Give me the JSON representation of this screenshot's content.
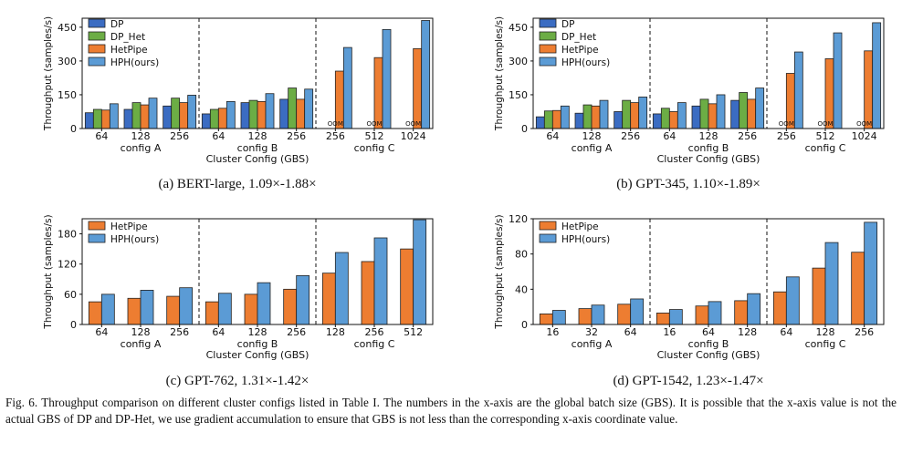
{
  "colors": {
    "DP": "#3b6cc2",
    "DP_Het": "#6cad45",
    "HetPipe": "#ed7d31",
    "HPH(ours)": "#5b9bd5"
  },
  "chart_data": [
    {
      "type": "bar",
      "ylabel": "Throughput (samples/s)",
      "xlabel": "Cluster Config (GBS)",
      "ylim": [
        0,
        490
      ],
      "yticks": [
        0,
        150,
        300,
        450
      ],
      "legend_placement": "top-left",
      "grid": false,
      "caption": "(a) BERT-large, 1.09×-1.88×",
      "groups": [
        {
          "label": "config A",
          "categories": [
            "64",
            "128",
            "256"
          ]
        },
        {
          "label": "config B",
          "categories": [
            "64",
            "128",
            "256"
          ]
        },
        {
          "label": "config C",
          "categories": [
            "256",
            "512",
            "1024"
          ]
        }
      ],
      "series": [
        {
          "name": "DP",
          "values": [
            70,
            85,
            100,
            65,
            115,
            130,
            null,
            null,
            null
          ]
        },
        {
          "name": "DP_Het",
          "values": [
            85,
            115,
            135,
            85,
            125,
            180,
            null,
            null,
            null
          ]
        },
        {
          "name": "HetPipe",
          "values": [
            82,
            105,
            115,
            90,
            120,
            130,
            255,
            315,
            355
          ]
        },
        {
          "name": "HPH(ours)",
          "values": [
            110,
            135,
            148,
            120,
            155,
            175,
            360,
            440,
            480
          ]
        }
      ],
      "annotations": [
        {
          "category_index": 6,
          "text": "OOM"
        },
        {
          "category_index": 7,
          "text": "OOM"
        },
        {
          "category_index": 8,
          "text": "OOM"
        }
      ]
    },
    {
      "type": "bar",
      "ylabel": "Throughput (samples/s)",
      "xlabel": "Cluster Config (GBS)",
      "ylim": [
        0,
        490
      ],
      "yticks": [
        0,
        150,
        300,
        450
      ],
      "legend_placement": "top-left",
      "grid": false,
      "caption": "(b) GPT-345, 1.10×-1.89×",
      "groups": [
        {
          "label": "config A",
          "categories": [
            "64",
            "128",
            "256"
          ]
        },
        {
          "label": "config B",
          "categories": [
            "64",
            "128",
            "256"
          ]
        },
        {
          "label": "config C",
          "categories": [
            "256",
            "512",
            "1024"
          ]
        }
      ],
      "series": [
        {
          "name": "DP",
          "values": [
            52,
            68,
            75,
            65,
            100,
            125,
            null,
            null,
            null
          ]
        },
        {
          "name": "DP_Het",
          "values": [
            78,
            105,
            125,
            90,
            130,
            160,
            null,
            null,
            null
          ]
        },
        {
          "name": "HetPipe",
          "values": [
            80,
            100,
            115,
            75,
            110,
            130,
            245,
            310,
            345
          ]
        },
        {
          "name": "HPH(ours)",
          "values": [
            100,
            125,
            140,
            115,
            150,
            180,
            340,
            425,
            470
          ]
        }
      ],
      "annotations": [
        {
          "category_index": 6,
          "text": "OOM"
        },
        {
          "category_index": 7,
          "text": "OOM"
        },
        {
          "category_index": 8,
          "text": "OOM"
        }
      ]
    },
    {
      "type": "bar",
      "ylabel": "Throughput (samples/s)",
      "xlabel": "Cluster Config (GBS)",
      "ylim": [
        0,
        210
      ],
      "yticks": [
        0,
        60,
        120,
        180
      ],
      "legend_placement": "top-left",
      "grid": false,
      "caption": "(c) GPT-762, 1.31×-1.42×",
      "groups": [
        {
          "label": "config A",
          "categories": [
            "64",
            "128",
            "256"
          ]
        },
        {
          "label": "config B",
          "categories": [
            "64",
            "128",
            "256"
          ]
        },
        {
          "label": "config C",
          "categories": [
            "128",
            "256",
            "512"
          ]
        }
      ],
      "series": [
        {
          "name": "HetPipe",
          "values": [
            45,
            52,
            56,
            45,
            60,
            70,
            102,
            125,
            150
          ]
        },
        {
          "name": "HPH(ours)",
          "values": [
            60,
            68,
            73,
            62,
            83,
            97,
            143,
            172,
            208
          ]
        }
      ],
      "annotations": []
    },
    {
      "type": "bar",
      "ylabel": "Throughput (samples/s)",
      "xlabel": "Cluster Config (GBS)",
      "ylim": [
        0,
        120
      ],
      "yticks": [
        0,
        40,
        80,
        120
      ],
      "legend_placement": "top-left",
      "grid": false,
      "caption": "(d) GPT-1542, 1.23×-1.47×",
      "groups": [
        {
          "label": "config A",
          "categories": [
            "16",
            "32",
            "64"
          ]
        },
        {
          "label": "config B",
          "categories": [
            "16",
            "64",
            "128"
          ]
        },
        {
          "label": "config C",
          "categories": [
            "64",
            "128",
            "256"
          ]
        }
      ],
      "series": [
        {
          "name": "HetPipe",
          "values": [
            12,
            18,
            23,
            13,
            21,
            27,
            37,
            64,
            82
          ]
        },
        {
          "name": "HPH(ours)",
          "values": [
            16,
            22,
            29,
            17,
            26,
            35,
            54,
            93,
            116
          ]
        }
      ],
      "annotations": []
    }
  ],
  "figure_caption": "Fig. 6.  Throughput comparison on different cluster configs listed in Table I. The numbers in the x-axis are the global batch size (GBS). It is possible that the x-axis value is not the actual GBS of DP and DP-Het, we use gradient accumulation to ensure that GBS is not less than the corresponding x-axis coordinate value."
}
